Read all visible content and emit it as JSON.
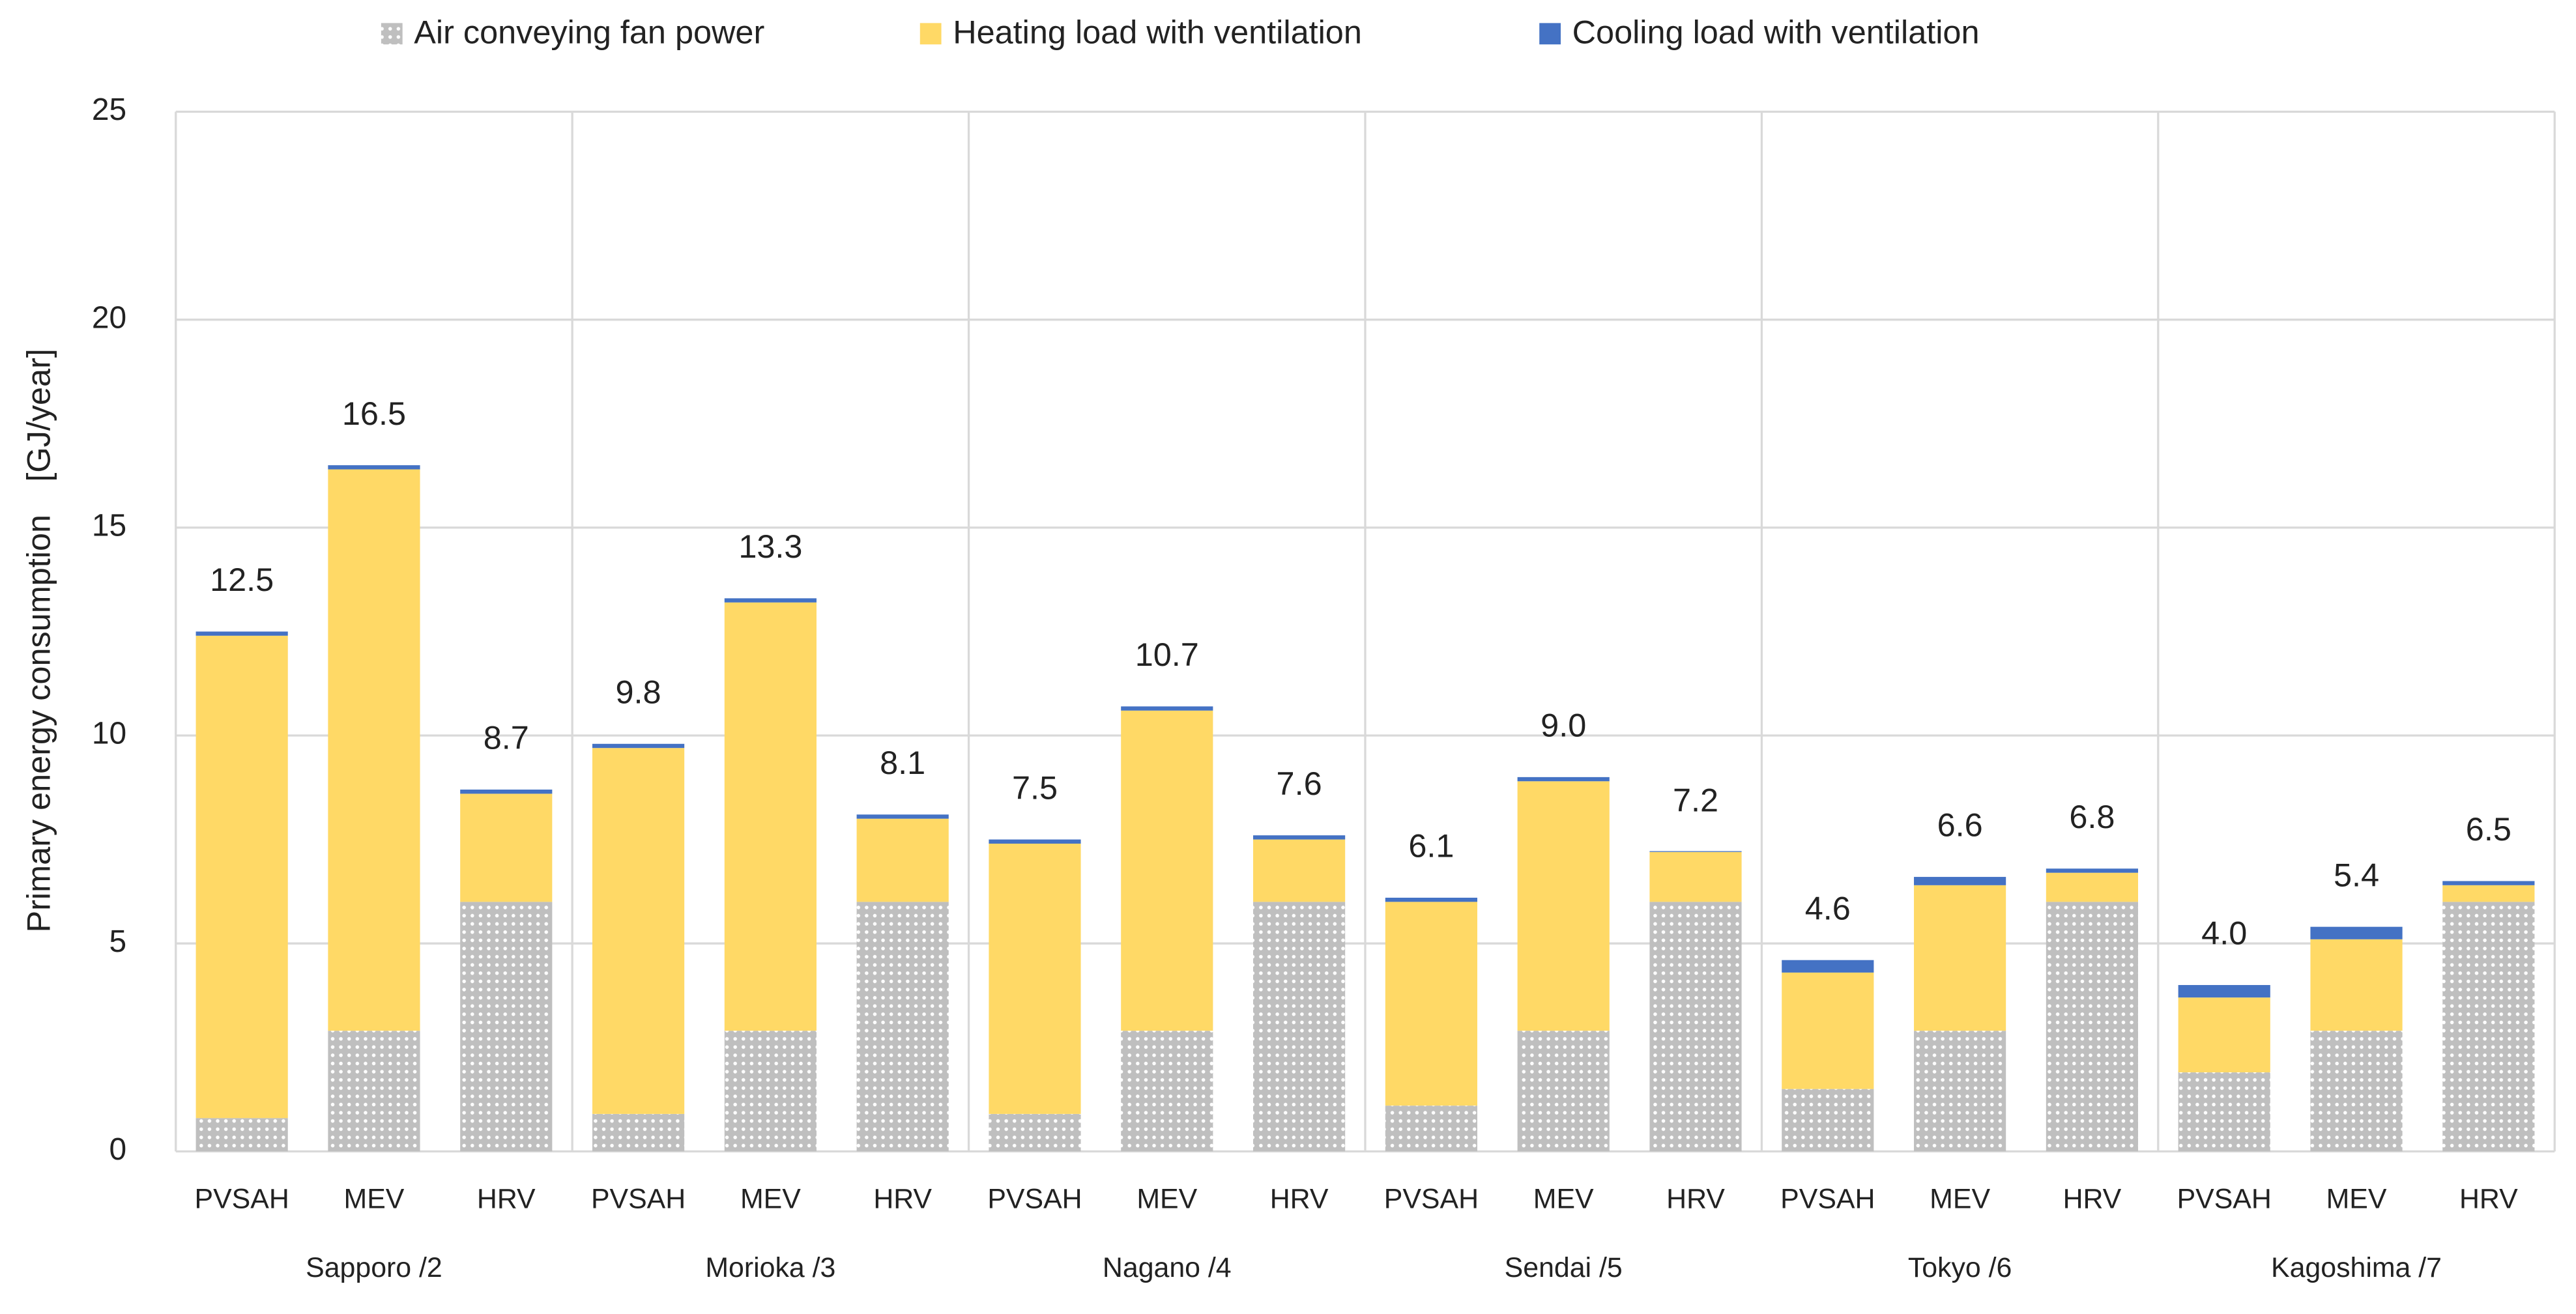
{
  "chart_data": {
    "type": "stacked-bar",
    "y_label": "Primary energy consumption　[GJ/year]",
    "categories": [
      "PVSAH",
      "MEV",
      "HRV",
      "PVSAH",
      "MEV",
      "HRV",
      "PVSAH",
      "MEV",
      "HRV",
      "PVSAH",
      "MEV",
      "HRV",
      "PVSAH",
      "MEV",
      "HRV",
      "PVSAH",
      "MEV",
      "HRV"
    ],
    "groups": [
      "Sapporo /2",
      "Morioka /3",
      "Nagano /4",
      "Sendai /5",
      "Tokyo /6",
      "Kagoshima /7"
    ],
    "series": [
      {
        "name": "Air conveying fan power",
        "color": "#bfbfbf",
        "pattern": "dots",
        "values": [
          0.8,
          2.9,
          6.0,
          0.9,
          2.9,
          6.0,
          0.9,
          2.9,
          6.0,
          1.1,
          2.9,
          6.0,
          1.5,
          2.9,
          6.0,
          1.9,
          2.9,
          6.0
        ]
      },
      {
        "name": "Heating load with ventilation",
        "color": "#ffd966",
        "values": [
          11.6,
          13.5,
          2.6,
          8.8,
          10.3,
          2.0,
          6.5,
          7.7,
          1.5,
          4.9,
          6.0,
          1.2,
          2.8,
          3.5,
          0.7,
          1.8,
          2.2,
          0.4
        ]
      },
      {
        "name": "Cooling load with ventilation",
        "color": "#4472c4",
        "values": [
          0.1,
          0.1,
          0.1,
          0.1,
          0.1,
          0.1,
          0.1,
          0.1,
          0.1,
          0.1,
          0.1,
          0.02,
          0.3,
          0.2,
          0.1,
          0.3,
          0.3,
          0.1
        ]
      }
    ],
    "totals": {
      "values": [
        12.5,
        16.5,
        8.7,
        9.8,
        13.3,
        8.1,
        7.5,
        10.7,
        7.6,
        6.1,
        9.0,
        7.2,
        4.6,
        6.6,
        6.8,
        4.0,
        5.4,
        6.5
      ],
      "value_labels": [
        "12.5",
        "16.5",
        "8.7",
        "9.8",
        "13.3",
        "8.1",
        "7.5",
        "10.7",
        "7.6",
        "6.1",
        "9.0",
        "7.2",
        "4.6",
        "6.6",
        "6.8",
        "4.0",
        "5.4",
        "6.5"
      ]
    },
    "ylim": [
      0,
      25
    ],
    "yticks": [
      0,
      5,
      10,
      15,
      20,
      25
    ],
    "grid": true,
    "legend": "top"
  }
}
